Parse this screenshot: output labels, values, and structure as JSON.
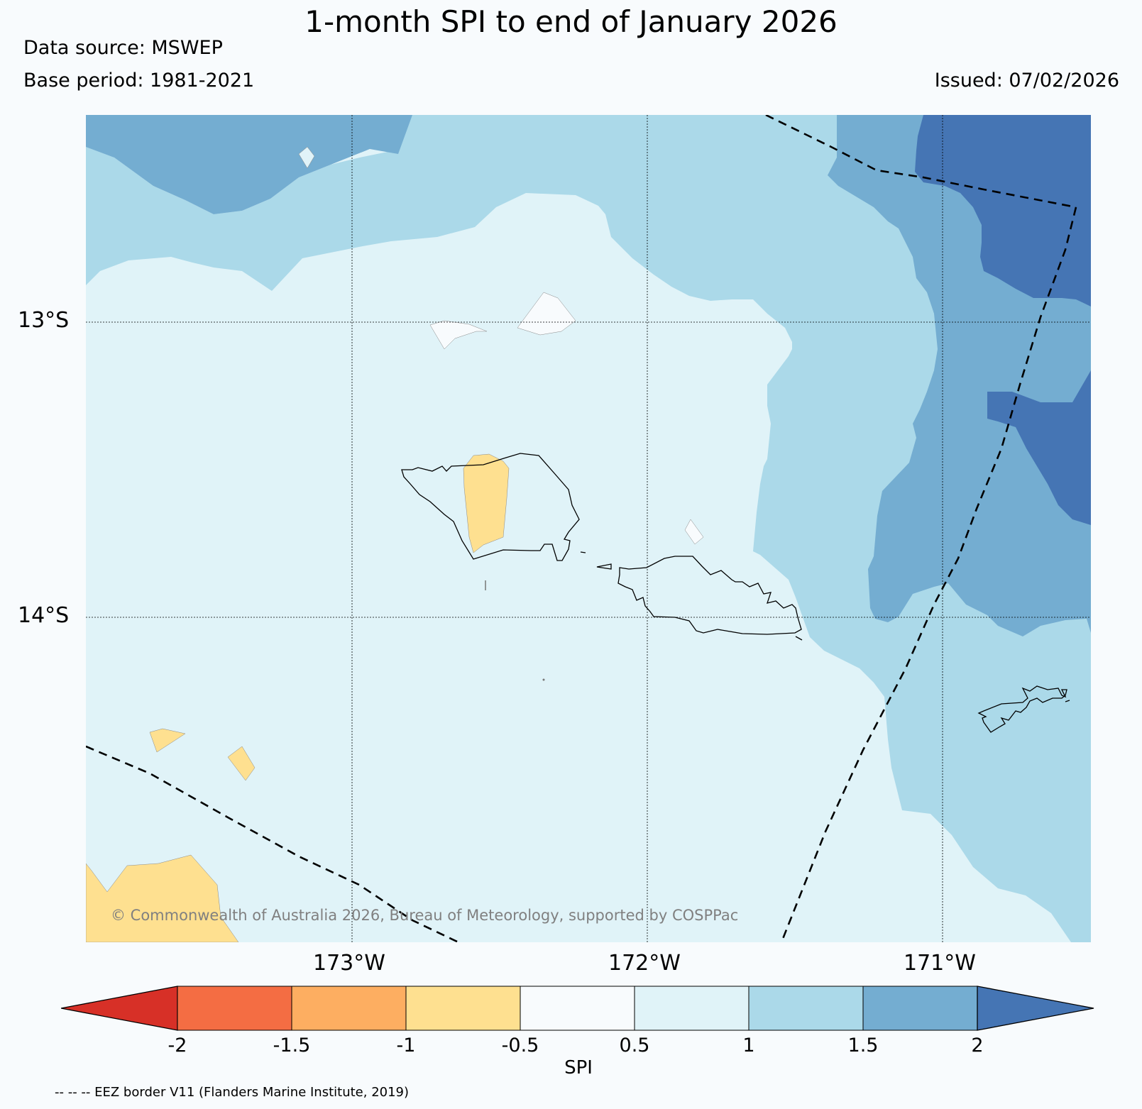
{
  "title": "1-month SPI to end of January 2026",
  "data_source": "Data source: MSWEP",
  "base_period": "Base period: 1981-2021",
  "issued": "Issued: 07/02/2026",
  "copyright": "© Commonwealth of Australia 2026, Bureau of Meteorology, supported by COSPPac",
  "footer_note": "-- -- -- EEZ border V11 (Flanders Marine Institute, 2019)",
  "axes": {
    "lat_labels": [
      "13°S",
      "14°S"
    ],
    "lon_labels": [
      "173°W",
      "172°W",
      "171°W"
    ]
  },
  "colorbar": {
    "label": "SPI",
    "ticks": [
      "-2",
      "-1.5",
      "-1",
      "-0.5",
      "0.5",
      "1",
      "1.5",
      "2"
    ],
    "colors": {
      "lt_m2": "#d73027",
      "m2_m15": "#f46d43",
      "m15_m1": "#fdae61",
      "m1_m05": "#fee090",
      "m05_05": "#f8fbfd",
      "c05_1": "#e0f3f8",
      "c1_15": "#abd9e9",
      "c15_2": "#74add1",
      "gt_2": "#4575b4"
    }
  }
}
